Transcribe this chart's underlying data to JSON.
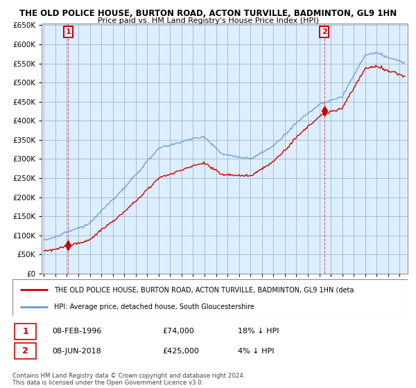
{
  "title1": "THE OLD POLICE HOUSE, BURTON ROAD, ACTON TURVILLE, BADMINTON, GL9 1HN",
  "title2": "Price paid vs. HM Land Registry's House Price Index (HPI)",
  "background_color": "#ffffff",
  "plot_bg_color": "#ddeeff",
  "grid_color": "#aabbcc",
  "hpi_color": "#6699cc",
  "price_color": "#cc0000",
  "sale1_year": 1996.12,
  "sale1_price": 74000,
  "sale2_year": 2018.44,
  "sale2_price": 425000,
  "ylim_min": 0,
  "ylim_max": 650000,
  "xlim_min": 1993.8,
  "xlim_max": 2025.7,
  "legend_line1": "THE OLD POLICE HOUSE, BURTON ROAD, ACTON TURVILLE, BADMINTON, GL9 1HN (deta",
  "legend_line2": "HPI: Average price, detached house, South Gloucestershire",
  "note1_box": "1",
  "note1_date": "08-FEB-1996",
  "note1_price": "£74,000",
  "note1_hpi": "18% ↓ HPI",
  "note2_box": "2",
  "note2_date": "08-JUN-2018",
  "note2_price": "£425,000",
  "note2_hpi": "4% ↓ HPI",
  "copyright": "Contains HM Land Registry data © Crown copyright and database right 2024.\nThis data is licensed under the Open Government Licence v3.0."
}
